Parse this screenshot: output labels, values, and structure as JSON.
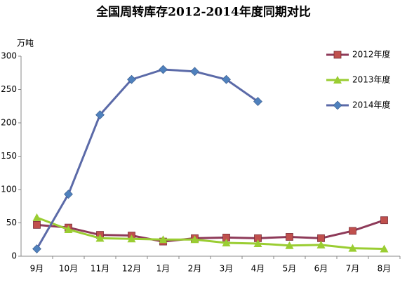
{
  "chart_data": {
    "type": "line",
    "title": "全国周转库存2012-2014年度同期对比",
    "y_label": "万吨",
    "categories": [
      "9月",
      "10月",
      "11月",
      "12月",
      "1月",
      "2月",
      "3月",
      "4月",
      "5月",
      "6月",
      "7月",
      "8月"
    ],
    "series": [
      {
        "name": "2012年度",
        "color": "#8e3a59",
        "marker_color": "#c0504d",
        "marker": "square",
        "values": [
          47,
          43,
          32,
          31,
          22,
          27,
          28,
          27,
          29,
          27,
          38,
          54
        ]
      },
      {
        "name": "2013年度",
        "color": "#9acd32",
        "marker_color": "#9acd32",
        "marker": "triangle",
        "values": [
          58,
          40,
          27,
          26,
          25,
          25,
          20,
          19,
          16,
          17,
          12,
          11
        ]
      },
      {
        "name": "2014年度",
        "color": "#5b6aa8",
        "marker_color": "#4f81bd",
        "marker": "diamond",
        "values": [
          11,
          93,
          212,
          265,
          280,
          277,
          265,
          232,
          null,
          null,
          null,
          null
        ]
      }
    ],
    "ylim": [
      0,
      300
    ],
    "yticks": [
      0,
      50,
      100,
      150,
      200,
      250,
      300
    ],
    "grid": false,
    "legend": "right"
  }
}
